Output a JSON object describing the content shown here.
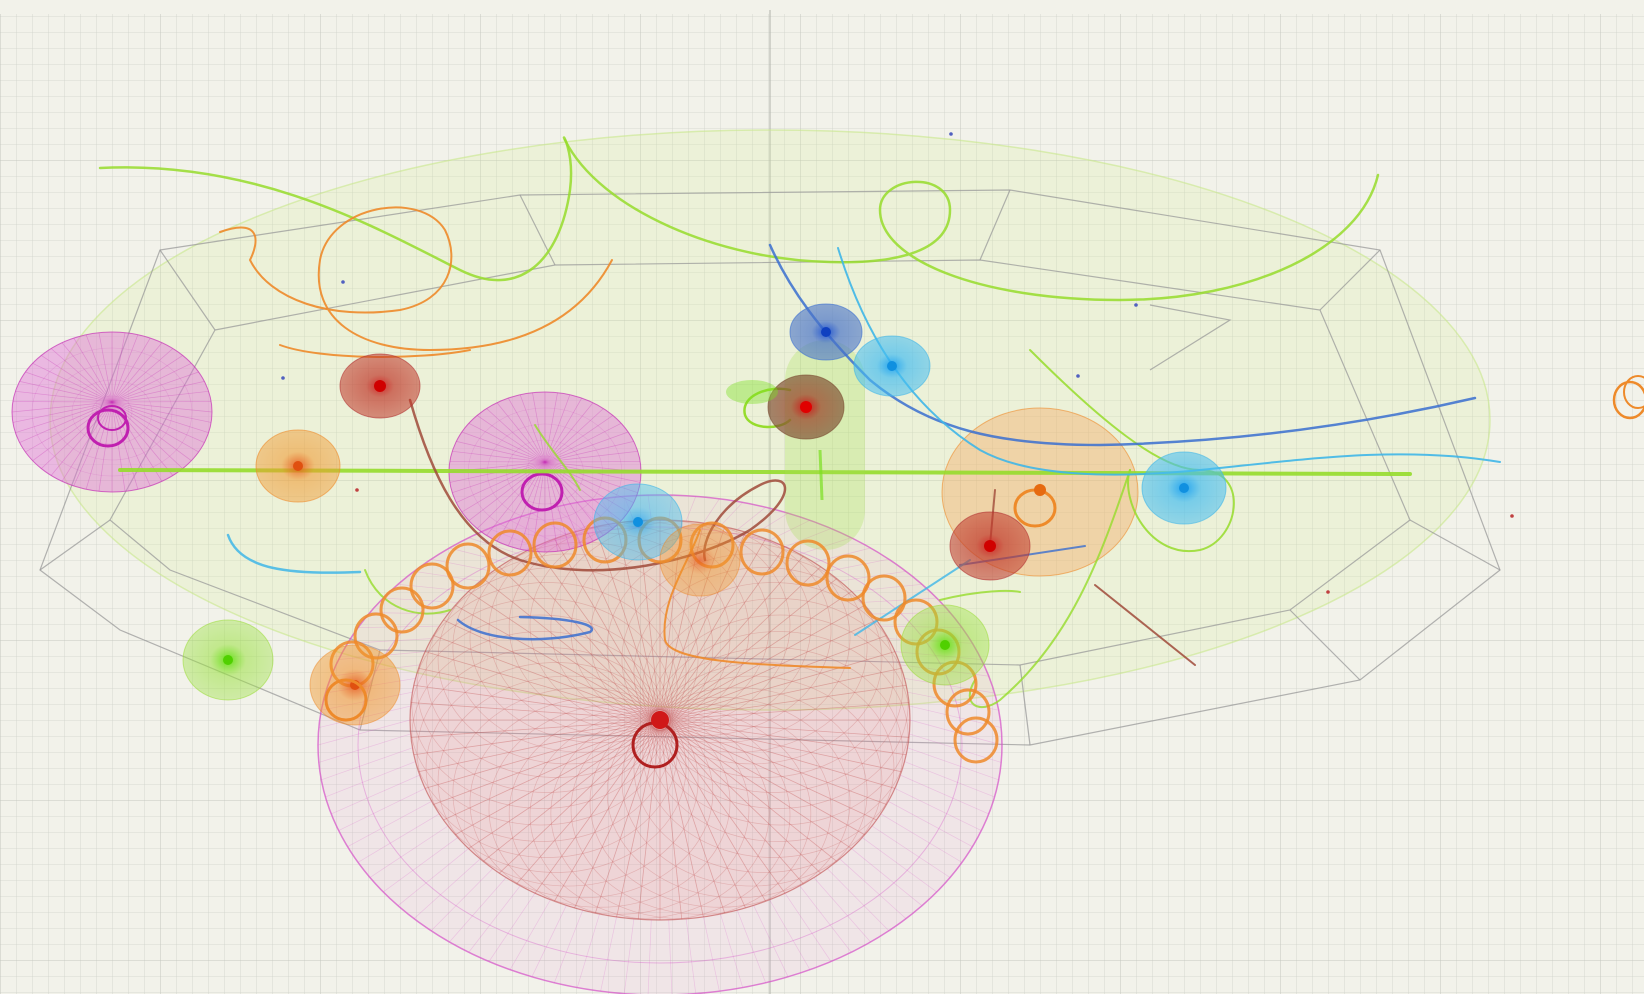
{
  "scene": {
    "background": "#f2f2ea",
    "grid_color": "#c9ccc4",
    "wireframe_color": "#9a9a9a",
    "palette": {
      "red": "#c0392b",
      "magenta": "#d63fc6",
      "orange": "#ee8a2a",
      "lime": "#96dc2c",
      "blue": "#3a6ed0",
      "cyan": "#3fb6e8",
      "brown": "#8b3a2a"
    }
  }
}
